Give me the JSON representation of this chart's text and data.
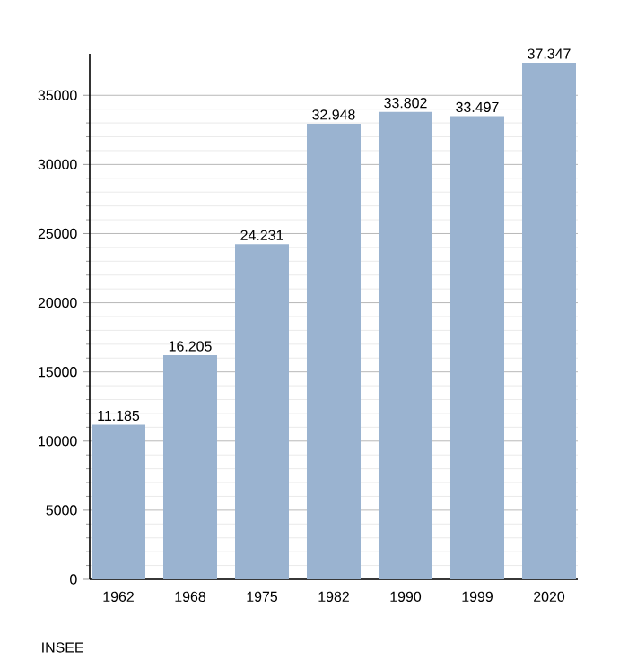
{
  "chart_data": {
    "type": "bar",
    "categories": [
      "1962",
      "1968",
      "1975",
      "1982",
      "1990",
      "1999",
      "2020"
    ],
    "values": [
      11185,
      16205,
      24231,
      32948,
      33802,
      33497,
      37347
    ],
    "value_labels": [
      "11.185",
      "16.205",
      "24.231",
      "32.948",
      "33.802",
      "33.497",
      "37.347"
    ],
    "color": "#9ab3d0",
    "ylim": [
      0,
      38000
    ],
    "yticks": [
      0,
      5000,
      10000,
      15000,
      20000,
      25000,
      30000,
      35000
    ],
    "grid": "y",
    "annotations": [
      "INSEE"
    ]
  }
}
